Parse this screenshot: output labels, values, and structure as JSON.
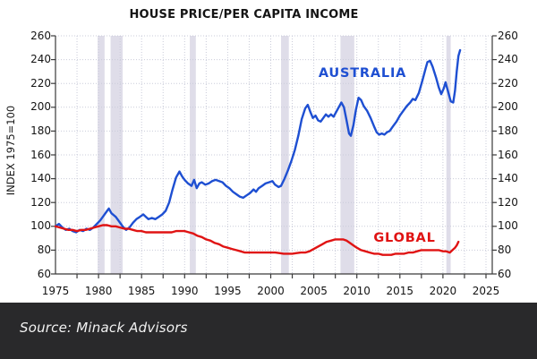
{
  "footer": {
    "source": "Source: Minack Advisors"
  },
  "chart_data": {
    "type": "line",
    "title": "HOUSE PRICE/PER CAPITA INCOME",
    "xlabel": "",
    "ylabel": "INDEX 1975=100",
    "ylim": [
      60,
      260
    ],
    "xlim": [
      1975,
      2025.7
    ],
    "y_ticks": [
      "60",
      "80",
      "100",
      "120",
      "140",
      "160",
      "180",
      "200",
      "220",
      "240",
      "260"
    ],
    "x_ticks": [
      "1975",
      "1980",
      "1985",
      "1990",
      "1995",
      "2000",
      "2005",
      "2010",
      "2015",
      "2020",
      "2025"
    ],
    "x_minor_step": 2.5,
    "grid": "dotted both axes, 20-unit horizontal, 2.5-year vertical",
    "legend_position": "labels inside plot",
    "colors": {
      "australia": "#1e4fd2",
      "global": "#e01313",
      "recession_band": "#dfdde9",
      "grid": "#c9cbd9",
      "axis": "#3a3a3a",
      "text": "#141414",
      "footer_bg": "#29292b",
      "footer_text": "#f2f2f2"
    },
    "recession_bands": [
      [
        1979.9,
        1980.7
      ],
      [
        1981.4,
        1982.8
      ],
      [
        1990.6,
        1991.3
      ],
      [
        2001.2,
        2002.1
      ],
      [
        2008.1,
        2009.7
      ],
      [
        2020.4,
        2020.9
      ]
    ],
    "series": [
      {
        "name": "AUSTRALIA",
        "color": "#1e4fd2",
        "points": [
          [
            1975,
            100
          ],
          [
            1975.4,
            102
          ],
          [
            1975.8,
            99
          ],
          [
            1976.2,
            97
          ],
          [
            1976.6,
            98
          ],
          [
            1977,
            96
          ],
          [
            1977.4,
            95
          ],
          [
            1977.8,
            97
          ],
          [
            1978.2,
            96
          ],
          [
            1978.6,
            98
          ],
          [
            1979,
            97
          ],
          [
            1979.4,
            99
          ],
          [
            1979.8,
            102
          ],
          [
            1980.2,
            105
          ],
          [
            1980.6,
            109
          ],
          [
            1981,
            113
          ],
          [
            1981.2,
            115
          ],
          [
            1981.5,
            111
          ],
          [
            1982,
            108
          ],
          [
            1982.4,
            104
          ],
          [
            1982.8,
            100
          ],
          [
            1983.2,
            97
          ],
          [
            1983.6,
            99
          ],
          [
            1984,
            103
          ],
          [
            1984.4,
            106
          ],
          [
            1984.8,
            108
          ],
          [
            1985.2,
            110
          ],
          [
            1985.5,
            108
          ],
          [
            1985.8,
            106
          ],
          [
            1986.2,
            107
          ],
          [
            1986.6,
            106
          ],
          [
            1987,
            108
          ],
          [
            1987.4,
            110
          ],
          [
            1987.8,
            113
          ],
          [
            1988.2,
            120
          ],
          [
            1988.6,
            131
          ],
          [
            1989,
            141
          ],
          [
            1989.4,
            146
          ],
          [
            1989.7,
            142
          ],
          [
            1990,
            139
          ],
          [
            1990.4,
            136
          ],
          [
            1990.8,
            134
          ],
          [
            1991.1,
            139
          ],
          [
            1991.4,
            132
          ],
          [
            1991.7,
            136
          ],
          [
            1992,
            137
          ],
          [
            1992.4,
            135
          ],
          [
            1992.8,
            136
          ],
          [
            1993.2,
            138
          ],
          [
            1993.6,
            139
          ],
          [
            1994,
            138
          ],
          [
            1994.4,
            137
          ],
          [
            1994.8,
            134
          ],
          [
            1995.2,
            132
          ],
          [
            1995.6,
            129
          ],
          [
            1996,
            127
          ],
          [
            1996.4,
            125
          ],
          [
            1996.8,
            124
          ],
          [
            1997.2,
            126
          ],
          [
            1997.6,
            128
          ],
          [
            1998,
            131
          ],
          [
            1998.3,
            129
          ],
          [
            1998.6,
            132
          ],
          [
            1999,
            134
          ],
          [
            1999.4,
            136
          ],
          [
            1999.8,
            137
          ],
          [
            2000.2,
            138
          ],
          [
            2000.5,
            135
          ],
          [
            2000.9,
            133
          ],
          [
            2001.2,
            134
          ],
          [
            2001.6,
            140
          ],
          [
            2002,
            147
          ],
          [
            2002.4,
            155
          ],
          [
            2002.8,
            164
          ],
          [
            2003.2,
            176
          ],
          [
            2003.6,
            190
          ],
          [
            2004,
            199
          ],
          [
            2004.3,
            202
          ],
          [
            2004.6,
            196
          ],
          [
            2004.9,
            191
          ],
          [
            2005.2,
            193
          ],
          [
            2005.5,
            189
          ],
          [
            2005.8,
            188
          ],
          [
            2006.1,
            191
          ],
          [
            2006.4,
            194
          ],
          [
            2006.7,
            192
          ],
          [
            2007,
            194
          ],
          [
            2007.3,
            192
          ],
          [
            2007.6,
            196
          ],
          [
            2007.9,
            200
          ],
          [
            2008.2,
            204
          ],
          [
            2008.5,
            200
          ],
          [
            2008.8,
            189
          ],
          [
            2009.1,
            178
          ],
          [
            2009.3,
            176
          ],
          [
            2009.6,
            185
          ],
          [
            2009.9,
            198
          ],
          [
            2010.2,
            208
          ],
          [
            2010.5,
            206
          ],
          [
            2010.8,
            201
          ],
          [
            2011.2,
            197
          ],
          [
            2011.6,
            191
          ],
          [
            2012,
            184
          ],
          [
            2012.3,
            179
          ],
          [
            2012.6,
            177
          ],
          [
            2012.9,
            178
          ],
          [
            2013.2,
            177
          ],
          [
            2013.5,
            179
          ],
          [
            2013.8,
            180
          ],
          [
            2014.2,
            184
          ],
          [
            2014.6,
            188
          ],
          [
            2015,
            193
          ],
          [
            2015.4,
            197
          ],
          [
            2015.8,
            201
          ],
          [
            2016.2,
            204
          ],
          [
            2016.5,
            207
          ],
          [
            2016.8,
            206
          ],
          [
            2017.2,
            212
          ],
          [
            2017.6,
            222
          ],
          [
            2018,
            233
          ],
          [
            2018.2,
            238
          ],
          [
            2018.5,
            239
          ],
          [
            2018.8,
            234
          ],
          [
            2019.2,
            225
          ],
          [
            2019.5,
            217
          ],
          [
            2019.8,
            211
          ],
          [
            2020.1,
            216
          ],
          [
            2020.3,
            221
          ],
          [
            2020.6,
            213
          ],
          [
            2020.9,
            205
          ],
          [
            2021.2,
            204
          ],
          [
            2021.4,
            214
          ],
          [
            2021.6,
            230
          ],
          [
            2021.8,
            243
          ],
          [
            2022,
            248
          ]
        ]
      },
      {
        "name": "GLOBAL",
        "color": "#e01313",
        "points": [
          [
            1975,
            100
          ],
          [
            1975.5,
            99
          ],
          [
            1976,
            98
          ],
          [
            1976.5,
            97
          ],
          [
            1977,
            97
          ],
          [
            1977.5,
            96
          ],
          [
            1978,
            97
          ],
          [
            1978.5,
            97
          ],
          [
            1979,
            98
          ],
          [
            1979.5,
            99
          ],
          [
            1980,
            100
          ],
          [
            1980.5,
            101
          ],
          [
            1981,
            101
          ],
          [
            1981.5,
            100
          ],
          [
            1982,
            100
          ],
          [
            1982.5,
            99
          ],
          [
            1983,
            98
          ],
          [
            1983.5,
            98
          ],
          [
            1984,
            97
          ],
          [
            1984.5,
            96
          ],
          [
            1985,
            96
          ],
          [
            1985.5,
            95
          ],
          [
            1986,
            95
          ],
          [
            1986.5,
            95
          ],
          [
            1987,
            95
          ],
          [
            1987.5,
            95
          ],
          [
            1988,
            95
          ],
          [
            1988.5,
            95
          ],
          [
            1989,
            96
          ],
          [
            1989.5,
            96
          ],
          [
            1990,
            96
          ],
          [
            1990.5,
            95
          ],
          [
            1991,
            94
          ],
          [
            1991.5,
            92
          ],
          [
            1992,
            91
          ],
          [
            1992.5,
            89
          ],
          [
            1993,
            88
          ],
          [
            1993.5,
            86
          ],
          [
            1994,
            85
          ],
          [
            1994.5,
            83
          ],
          [
            1995,
            82
          ],
          [
            1995.5,
            81
          ],
          [
            1996,
            80
          ],
          [
            1996.5,
            79
          ],
          [
            1997,
            78
          ],
          [
            1997.5,
            78
          ],
          [
            1998,
            78
          ],
          [
            1998.5,
            78
          ],
          [
            1999,
            78
          ],
          [
            1999.5,
            78
          ],
          [
            2000,
            78
          ],
          [
            2000.5,
            78
          ],
          [
            2001,
            77.5
          ],
          [
            2001.5,
            77
          ],
          [
            2002,
            77
          ],
          [
            2002.5,
            77
          ],
          [
            2003,
            77.5
          ],
          [
            2003.5,
            78
          ],
          [
            2004,
            78
          ],
          [
            2004.5,
            79
          ],
          [
            2005,
            81
          ],
          [
            2005.5,
            83
          ],
          [
            2006,
            85
          ],
          [
            2006.5,
            87
          ],
          [
            2007,
            88
          ],
          [
            2007.5,
            89
          ],
          [
            2008,
            89
          ],
          [
            2008.4,
            89
          ],
          [
            2008.8,
            88
          ],
          [
            2009.2,
            86
          ],
          [
            2009.6,
            84
          ],
          [
            2010,
            82
          ],
          [
            2010.5,
            80
          ],
          [
            2011,
            79
          ],
          [
            2011.5,
            78
          ],
          [
            2012,
            77
          ],
          [
            2012.5,
            77
          ],
          [
            2013,
            76
          ],
          [
            2013.5,
            76
          ],
          [
            2014,
            76
          ],
          [
            2014.5,
            77
          ],
          [
            2015,
            77
          ],
          [
            2015.5,
            77
          ],
          [
            2016,
            78
          ],
          [
            2016.5,
            78
          ],
          [
            2017,
            79
          ],
          [
            2017.5,
            80
          ],
          [
            2018,
            80
          ],
          [
            2018.5,
            80
          ],
          [
            2019,
            80
          ],
          [
            2019.5,
            80
          ],
          [
            2020,
            79
          ],
          [
            2020.4,
            79
          ],
          [
            2020.8,
            78
          ],
          [
            2021.1,
            80
          ],
          [
            2021.4,
            82
          ],
          [
            2021.6,
            84
          ],
          [
            2021.8,
            87
          ]
        ]
      }
    ]
  }
}
